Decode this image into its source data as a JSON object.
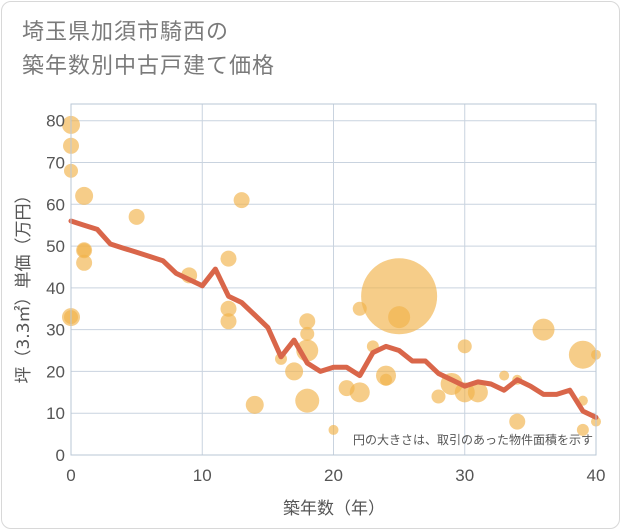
{
  "title_lines": [
    "埼玉県加須市騎西の",
    "築年数別中古戸建て価格"
  ],
  "colors": {
    "bubble": "#f1b24a",
    "line": "#d9664a",
    "grid": "#c9d3df",
    "frame": "#b9c7d6"
  },
  "chart_data": {
    "type": "scatter",
    "title": "埼玉県加須市騎西の築年数別中古戸建て価格",
    "xlabel": "築年数（年）",
    "ylabel": "坪（3.3㎡）単価（万円）",
    "xlim": [
      0,
      40
    ],
    "ylim": [
      0,
      84
    ],
    "x_ticks": [
      "0",
      "10",
      "20",
      "30",
      "40"
    ],
    "y_ticks": [
      "0",
      "10",
      "20",
      "30",
      "40",
      "50",
      "60",
      "70",
      "80"
    ],
    "note": "円の大きさは、取引のあった物件面積を示す",
    "bubbles": [
      {
        "x": 0,
        "y": 79,
        "r": 9
      },
      {
        "x": 0,
        "y": 74,
        "r": 8
      },
      {
        "x": 0,
        "y": 68,
        "r": 7
      },
      {
        "x": 1,
        "y": 62,
        "r": 9
      },
      {
        "x": 1,
        "y": 49,
        "r": 8
      },
      {
        "x": 1,
        "y": 49,
        "r": 7
      },
      {
        "x": 1,
        "y": 46,
        "r": 8
      },
      {
        "x": 0,
        "y": 33,
        "r": 9
      },
      {
        "x": 0,
        "y": 33,
        "r": 7
      },
      {
        "x": 5,
        "y": 57,
        "r": 8
      },
      {
        "x": 9,
        "y": 43,
        "r": 8
      },
      {
        "x": 12,
        "y": 47,
        "r": 8
      },
      {
        "x": 13,
        "y": 61,
        "r": 8
      },
      {
        "x": 12,
        "y": 35,
        "r": 8
      },
      {
        "x": 12,
        "y": 32,
        "r": 8
      },
      {
        "x": 14,
        "y": 12,
        "r": 9
      },
      {
        "x": 16,
        "y": 23,
        "r": 6
      },
      {
        "x": 17,
        "y": 20,
        "r": 9
      },
      {
        "x": 18,
        "y": 32,
        "r": 8
      },
      {
        "x": 18,
        "y": 29,
        "r": 7
      },
      {
        "x": 18,
        "y": 25,
        "r": 11
      },
      {
        "x": 18,
        "y": 13,
        "r": 12
      },
      {
        "x": 20,
        "y": 6,
        "r": 5
      },
      {
        "x": 21,
        "y": 16,
        "r": 8
      },
      {
        "x": 22,
        "y": 35,
        "r": 7
      },
      {
        "x": 22,
        "y": 15,
        "r": 10
      },
      {
        "x": 23,
        "y": 26,
        "r": 6
      },
      {
        "x": 24,
        "y": 19,
        "r": 10
      },
      {
        "x": 24,
        "y": 18,
        "r": 6
      },
      {
        "x": 25,
        "y": 38,
        "r": 38
      },
      {
        "x": 25,
        "y": 33,
        "r": 11
      },
      {
        "x": 28,
        "y": 14,
        "r": 7
      },
      {
        "x": 29,
        "y": 17,
        "r": 11
      },
      {
        "x": 30,
        "y": 26,
        "r": 7
      },
      {
        "x": 30,
        "y": 15,
        "r": 10
      },
      {
        "x": 31,
        "y": 15,
        "r": 10
      },
      {
        "x": 33,
        "y": 19,
        "r": 5
      },
      {
        "x": 34,
        "y": 18,
        "r": 5
      },
      {
        "x": 34,
        "y": 8,
        "r": 8
      },
      {
        "x": 36,
        "y": 30,
        "r": 11
      },
      {
        "x": 39,
        "y": 24,
        "r": 14
      },
      {
        "x": 39,
        "y": 13,
        "r": 5
      },
      {
        "x": 39,
        "y": 6,
        "r": 6
      },
      {
        "x": 40,
        "y": 24,
        "r": 5
      },
      {
        "x": 40,
        "y": 8,
        "r": 5
      }
    ],
    "trend_line": {
      "x": [
        0,
        1,
        2,
        3,
        4,
        5,
        6,
        7,
        8,
        9,
        10,
        11,
        12,
        13,
        14,
        15,
        16,
        17,
        18,
        19,
        20,
        21,
        22,
        23,
        24,
        25,
        26,
        27,
        28,
        29,
        30,
        31,
        32,
        33,
        34,
        35,
        36,
        37,
        38,
        39,
        40
      ],
      "y": [
        56,
        55,
        54,
        50.5,
        49.5,
        48.5,
        47.5,
        46.5,
        43.5,
        42,
        40.5,
        44.5,
        38,
        36.5,
        33.5,
        30.5,
        23.5,
        27.5,
        22,
        20,
        21,
        21,
        19,
        24.5,
        26,
        25,
        22.5,
        22.5,
        19.5,
        18,
        16.5,
        17.5,
        17,
        15.5,
        18,
        16.5,
        14.5,
        14.5,
        15.5,
        10.5,
        9
      ]
    }
  }
}
